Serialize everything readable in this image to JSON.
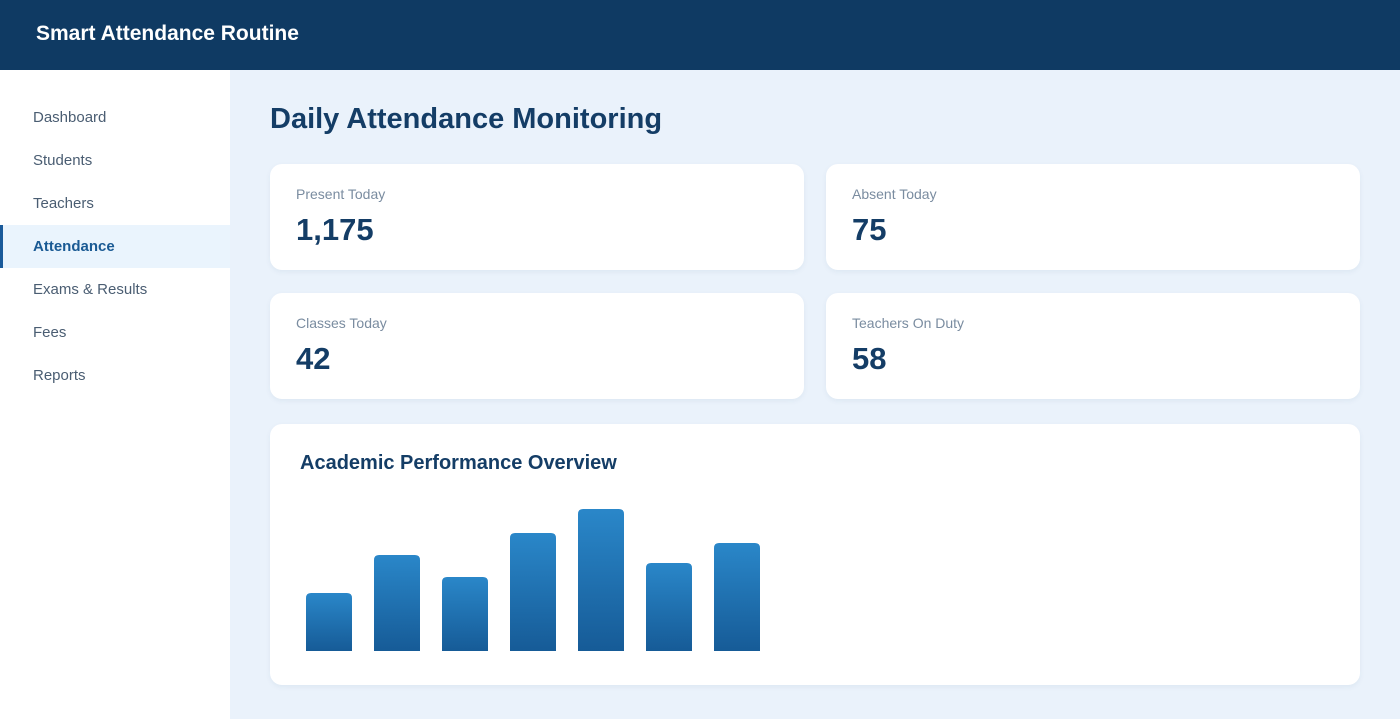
{
  "header": {
    "title": "Smart Attendance Routine"
  },
  "sidebar": {
    "items": [
      "Dashboard",
      "Students",
      "Teachers",
      "Attendance",
      "Exams & Results",
      "Fees",
      "Reports"
    ],
    "active_index": 3
  },
  "page": {
    "title": "Daily Attendance Monitoring"
  },
  "stats": [
    {
      "label": "Present Today",
      "value": "1,175"
    },
    {
      "label": "Absent Today",
      "value": "75"
    },
    {
      "label": "Classes Today",
      "value": "42"
    },
    {
      "label": "Teachers On Duty",
      "value": "58"
    }
  ],
  "chart_data": {
    "type": "bar",
    "title": "Academic Performance Overview",
    "values": [
      58,
      96,
      74,
      118,
      142,
      88,
      108
    ]
  }
}
